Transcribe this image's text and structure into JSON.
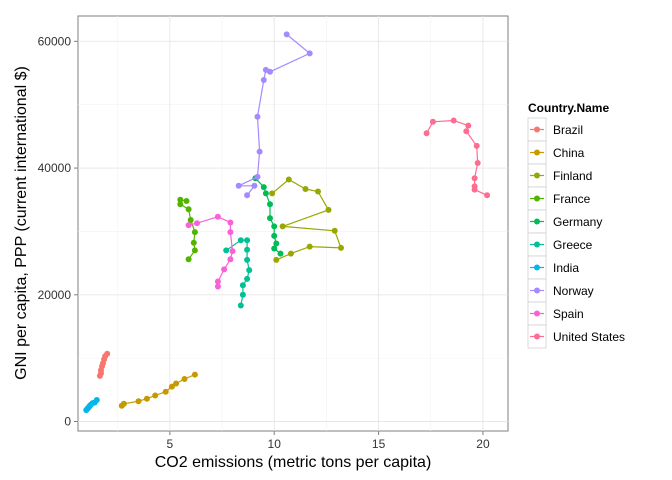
{
  "chart_data": {
    "type": "scatter",
    "connected_paths": true,
    "xlabel": "CO2 emissions (metric tons per capita)",
    "ylabel": "GNI per capita, PPP (current international $)",
    "xlim": [
      0.6,
      21.2
    ],
    "ylim": [
      -1500,
      64000
    ],
    "x_ticks": [
      5,
      10,
      15,
      20
    ],
    "y_ticks": [
      0,
      20000,
      40000,
      60000
    ],
    "x_tick_labels": [
      "5",
      "10",
      "15",
      "20"
    ],
    "y_tick_labels": [
      "0",
      "20000",
      "40000",
      "60000"
    ],
    "grid": true,
    "legend": {
      "title": "Country.Name",
      "position": "right"
    },
    "series": [
      {
        "name": "Brazil",
        "color": "#F8766D",
        "points": [
          [
            1.65,
            7200
          ],
          [
            1.7,
            7600
          ],
          [
            1.7,
            8100
          ],
          [
            1.75,
            8700
          ],
          [
            1.8,
            9200
          ],
          [
            1.85,
            9800
          ],
          [
            1.9,
            10300
          ],
          [
            2.0,
            10700
          ]
        ]
      },
      {
        "name": "China",
        "color": "#C49A00",
        "points": [
          [
            2.7,
            2500
          ],
          [
            2.8,
            2800
          ],
          [
            3.5,
            3200
          ],
          [
            3.9,
            3600
          ],
          [
            4.3,
            4100
          ],
          [
            4.8,
            4700
          ],
          [
            5.1,
            5500
          ],
          [
            5.3,
            6000
          ],
          [
            5.7,
            6700
          ],
          [
            6.2,
            7400
          ]
        ]
      },
      {
        "name": "Finland",
        "color": "#99A800",
        "points": [
          [
            10.1,
            25500
          ],
          [
            10.8,
            26500
          ],
          [
            11.7,
            27600
          ],
          [
            13.2,
            27400
          ],
          [
            12.9,
            30100
          ],
          [
            10.4,
            30800
          ],
          [
            12.6,
            33400
          ],
          [
            12.1,
            36300
          ],
          [
            11.5,
            36700
          ],
          [
            10.7,
            38200
          ],
          [
            9.9,
            36000
          ]
        ]
      },
      {
        "name": "France",
        "color": "#53B400",
        "points": [
          [
            5.9,
            25600
          ],
          [
            6.2,
            27000
          ],
          [
            6.15,
            28200
          ],
          [
            6.2,
            29900
          ],
          [
            6.0,
            31800
          ],
          [
            5.9,
            33500
          ],
          [
            5.5,
            34300
          ],
          [
            5.5,
            35000
          ],
          [
            5.8,
            34800
          ]
        ]
      },
      {
        "name": "Germany",
        "color": "#00BC56",
        "points": [
          [
            10.3,
            26500
          ],
          [
            10.0,
            27300
          ],
          [
            10.1,
            28100
          ],
          [
            10.0,
            29300
          ],
          [
            10.0,
            30800
          ],
          [
            9.8,
            32100
          ],
          [
            9.8,
            34300
          ],
          [
            9.6,
            36000
          ],
          [
            9.5,
            37000
          ],
          [
            9.1,
            38400
          ]
        ]
      },
      {
        "name": "Greece",
        "color": "#00C094",
        "points": [
          [
            8.4,
            18300
          ],
          [
            8.5,
            20000
          ],
          [
            8.5,
            21500
          ],
          [
            8.7,
            22500
          ],
          [
            8.8,
            23900
          ],
          [
            8.7,
            25500
          ],
          [
            8.7,
            27100
          ],
          [
            8.7,
            28600
          ],
          [
            8.4,
            28600
          ],
          [
            7.7,
            27000
          ]
        ]
      },
      {
        "name": "India",
        "color": "#00B6EB",
        "points": [
          [
            1.0,
            1800
          ],
          [
            1.05,
            2000
          ],
          [
            1.1,
            2200
          ],
          [
            1.15,
            2400
          ],
          [
            1.2,
            2600
          ],
          [
            1.3,
            2900
          ],
          [
            1.4,
            3000
          ],
          [
            1.5,
            3400
          ]
        ]
      },
      {
        "name": "Norway",
        "color": "#A58AFF",
        "points": [
          [
            8.7,
            35700
          ],
          [
            9.05,
            37200
          ],
          [
            8.3,
            37200
          ],
          [
            9.2,
            38600
          ],
          [
            9.3,
            42600
          ],
          [
            9.2,
            48100
          ],
          [
            9.5,
            53900
          ],
          [
            9.6,
            55500
          ],
          [
            9.8,
            55200
          ],
          [
            11.7,
            58100
          ],
          [
            10.6,
            61100
          ]
        ]
      },
      {
        "name": "Spain",
        "color": "#FB61D7",
        "points": [
          [
            7.3,
            21300
          ],
          [
            7.3,
            22100
          ],
          [
            7.6,
            24000
          ],
          [
            7.9,
            25600
          ],
          [
            8.0,
            26900
          ],
          [
            7.9,
            29900
          ],
          [
            7.9,
            31400
          ],
          [
            7.3,
            32300
          ],
          [
            6.3,
            31300
          ],
          [
            5.9,
            31000
          ]
        ]
      },
      {
        "name": "United States",
        "color": "#FF6C91",
        "points": [
          [
            17.3,
            45500
          ],
          [
            17.6,
            47300
          ],
          [
            18.6,
            47500
          ],
          [
            19.3,
            46700
          ],
          [
            19.2,
            45800
          ],
          [
            19.7,
            43500
          ],
          [
            19.75,
            40800
          ],
          [
            19.6,
            38400
          ],
          [
            19.6,
            37100
          ],
          [
            19.6,
            36600
          ],
          [
            20.2,
            35700
          ]
        ]
      }
    ]
  }
}
